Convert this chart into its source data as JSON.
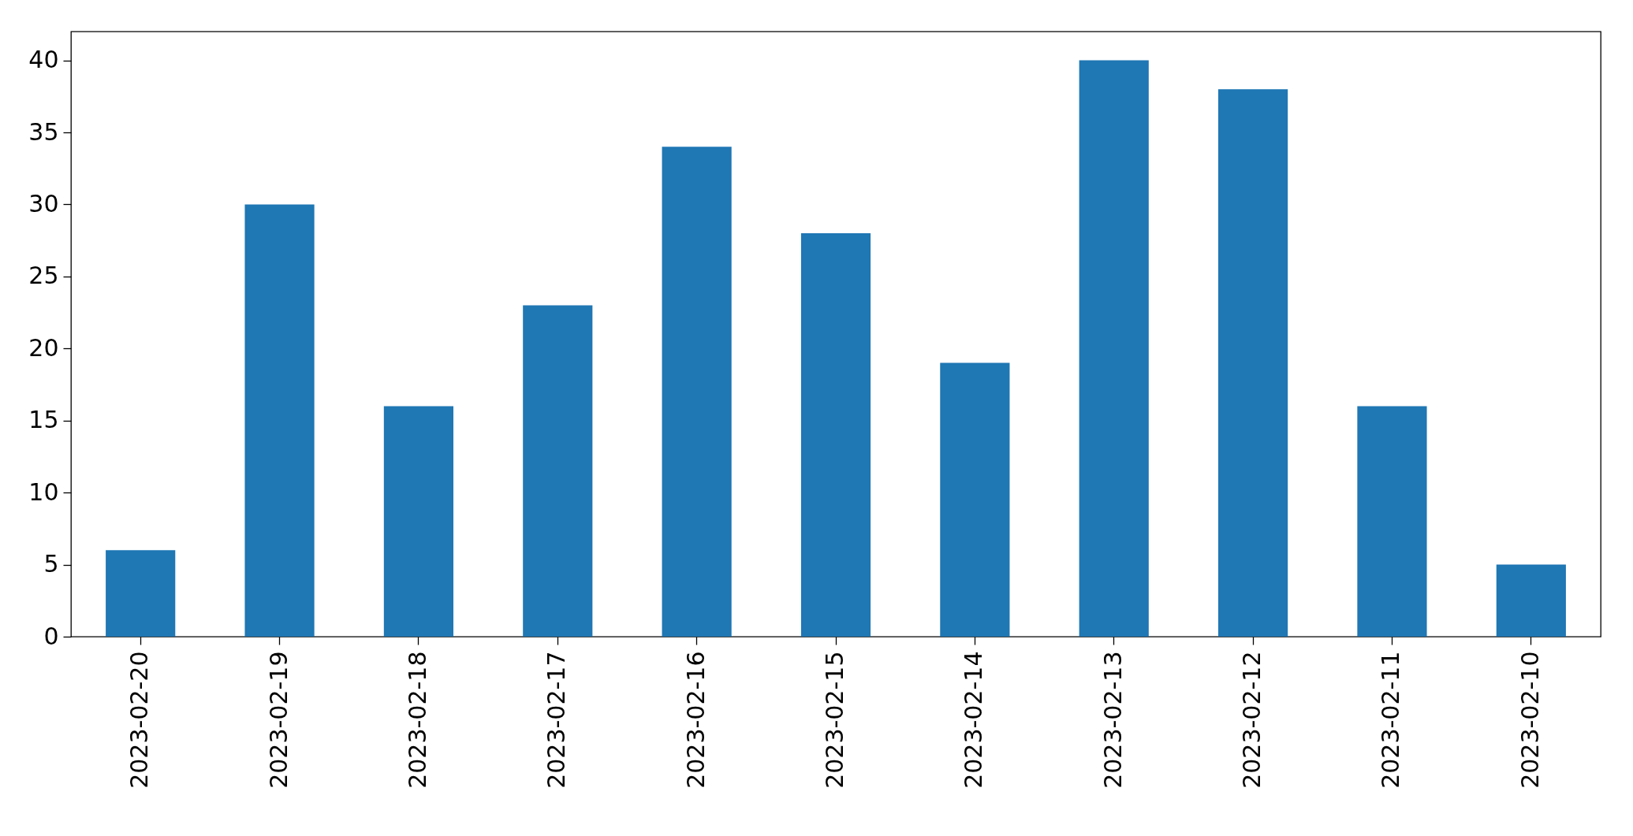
{
  "chart_data": {
    "type": "bar",
    "categories": [
      "2023-02-20",
      "2023-02-19",
      "2023-02-18",
      "2023-02-17",
      "2023-02-16",
      "2023-02-15",
      "2023-02-14",
      "2023-02-13",
      "2023-02-12",
      "2023-02-11",
      "2023-02-10"
    ],
    "values": [
      6,
      30,
      16,
      23,
      34,
      28,
      19,
      40,
      38,
      16,
      5
    ],
    "color": "#1f77b4",
    "ylim": [
      0,
      42
    ],
    "yticks": [
      0,
      5,
      10,
      15,
      20,
      25,
      30,
      35,
      40
    ],
    "grid": false
  }
}
